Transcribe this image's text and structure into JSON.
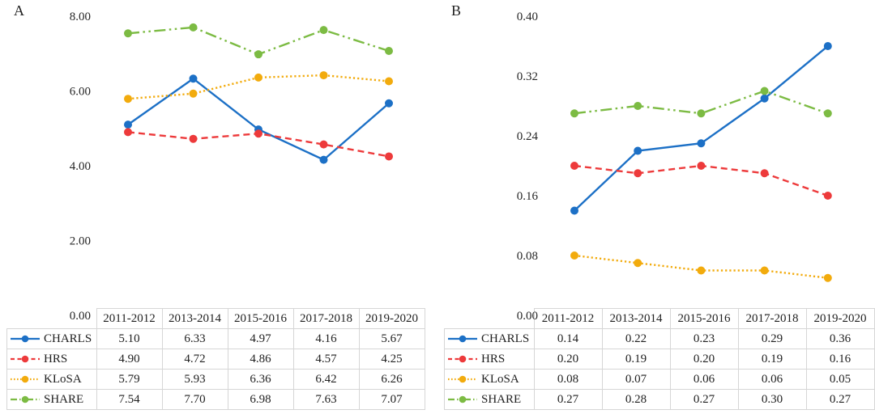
{
  "chart_data": [
    {
      "panel_label": "A",
      "type": "line",
      "categories": [
        "2011-2012",
        "2013-2014",
        "2015-2016",
        "2017-2018",
        "2019-2020"
      ],
      "series": [
        {
          "name": "CHARLS",
          "values": [
            5.1,
            6.33,
            4.97,
            4.16,
            5.67
          ],
          "color": "#1c70c6",
          "dash": "solid"
        },
        {
          "name": "HRS",
          "values": [
            4.9,
            4.72,
            4.86,
            4.57,
            4.25
          ],
          "color": "#ed3a3b",
          "dash": "dashed"
        },
        {
          "name": "KLoSA",
          "values": [
            5.79,
            5.93,
            6.36,
            6.42,
            6.26
          ],
          "color": "#f2ab0d",
          "dash": "dotted"
        },
        {
          "name": "SHARE",
          "values": [
            7.54,
            7.7,
            6.98,
            7.63,
            7.07
          ],
          "color": "#7cbb43",
          "dash": "dashdotdot"
        }
      ],
      "ylim": [
        0,
        8
      ],
      "ytick_values": [
        8,
        6,
        4,
        2,
        0
      ],
      "ytick_labels": [
        "8.00",
        "6.00",
        "4.00",
        "2.00",
        "0.00"
      ],
      "decimals": 2,
      "grid": false,
      "legend_position": "table-left"
    },
    {
      "panel_label": "B",
      "type": "line",
      "categories": [
        "2011-2012",
        "2013-2014",
        "2015-2016",
        "2017-2018",
        "2019-2020"
      ],
      "series": [
        {
          "name": "CHARLS",
          "values": [
            0.14,
            0.22,
            0.23,
            0.29,
            0.36
          ],
          "color": "#1c70c6",
          "dash": "solid"
        },
        {
          "name": "HRS",
          "values": [
            0.2,
            0.19,
            0.2,
            0.19,
            0.16
          ],
          "color": "#ed3a3b",
          "dash": "dashed"
        },
        {
          "name": "KLoSA",
          "values": [
            0.08,
            0.07,
            0.06,
            0.06,
            0.05
          ],
          "color": "#f2ab0d",
          "dash": "dotted"
        },
        {
          "name": "SHARE",
          "values": [
            0.27,
            0.28,
            0.27,
            0.3,
            0.27
          ],
          "color": "#7cbb43",
          "dash": "dashdotdot"
        }
      ],
      "ylim": [
        0,
        0.4
      ],
      "ytick_values": [
        0.4,
        0.32,
        0.24,
        0.16,
        0.08,
        0
      ],
      "ytick_labels": [
        "0.40",
        "0.32",
        "0.24",
        "0.16",
        "0.08",
        "0.00"
      ],
      "decimals": 2,
      "grid": false,
      "legend_position": "table-left"
    }
  ]
}
